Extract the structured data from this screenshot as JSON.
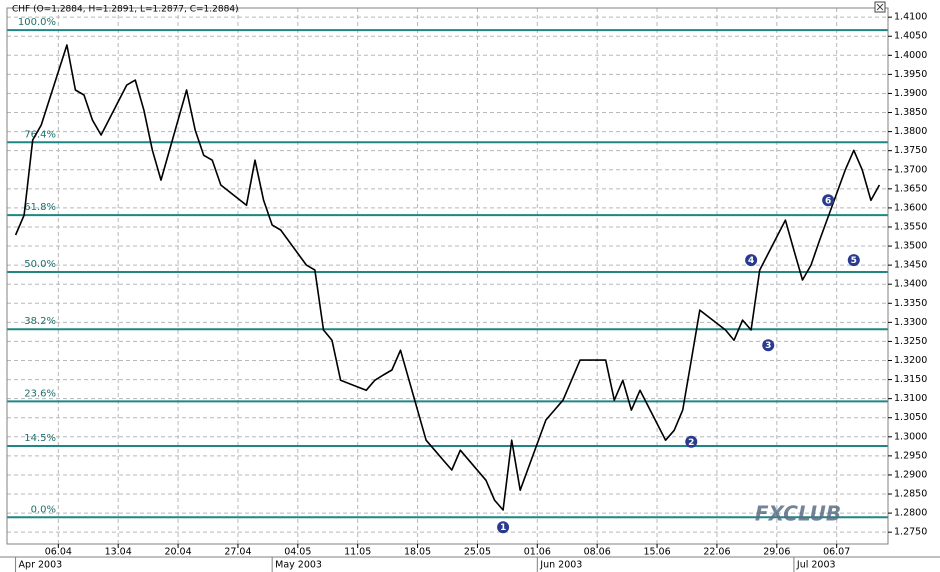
{
  "chart_data": {
    "type": "line",
    "title": "CHF (O=1.2884, H=1.2891, L=1.2877, C=1.2884)",
    "logo": "FXCLUB",
    "x": [
      "2003-04-01",
      "2003-04-02",
      "2003-04-03",
      "2003-04-04",
      "2003-04-07",
      "2003-04-08",
      "2003-04-09",
      "2003-04-10",
      "2003-04-11",
      "2003-04-14",
      "2003-04-15",
      "2003-04-16",
      "2003-04-17",
      "2003-04-18",
      "2003-04-21",
      "2003-04-22",
      "2003-04-23",
      "2003-04-24",
      "2003-04-25",
      "2003-04-28",
      "2003-04-29",
      "2003-04-30",
      "2003-05-01",
      "2003-05-02",
      "2003-05-05",
      "2003-05-06",
      "2003-05-07",
      "2003-05-08",
      "2003-05-09",
      "2003-05-12",
      "2003-05-13",
      "2003-05-14",
      "2003-05-15",
      "2003-05-16",
      "2003-05-19",
      "2003-05-20",
      "2003-05-21",
      "2003-05-22",
      "2003-05-23",
      "2003-05-26",
      "2003-05-27",
      "2003-05-28",
      "2003-05-29",
      "2003-05-30",
      "2003-06-02",
      "2003-06-03",
      "2003-06-04",
      "2003-06-05",
      "2003-06-06",
      "2003-06-09",
      "2003-06-10",
      "2003-06-11",
      "2003-06-12",
      "2003-06-13",
      "2003-06-16",
      "2003-06-17",
      "2003-06-18",
      "2003-06-19",
      "2003-06-20",
      "2003-06-23",
      "2003-06-24",
      "2003-06-25",
      "2003-06-26",
      "2003-06-27",
      "2003-06-30",
      "2003-07-01",
      "2003-07-02",
      "2003-07-03",
      "2003-07-04",
      "2003-07-07",
      "2003-07-08",
      "2003-07-09",
      "2003-07-10",
      "2003-07-11"
    ],
    "series": [
      {
        "name": "CHF",
        "color": "#000000",
        "values": [
          1.3529,
          1.3581,
          1.3778,
          1.3817,
          1.4027,
          1.3909,
          1.3896,
          1.383,
          1.3791,
          1.3922,
          1.3935,
          1.3856,
          1.3751,
          1.3673,
          1.3909,
          1.3804,
          1.3738,
          1.3725,
          1.366,
          1.3607,
          1.3725,
          1.362,
          1.3555,
          1.3542,
          1.345,
          1.3437,
          1.328,
          1.3253,
          1.3148,
          1.3122,
          1.3148,
          1.3162,
          1.3175,
          1.3227,
          1.2991,
          1.2965,
          1.2939,
          1.2913,
          1.2965,
          1.2886,
          1.2834,
          1.2808,
          1.2991,
          1.286,
          1.3044,
          1.307,
          1.3096,
          1.3148,
          1.3201,
          1.3201,
          1.3096,
          1.3148,
          1.307,
          1.3122,
          1.2991,
          1.3017,
          1.307,
          1.3201,
          1.3332,
          1.328,
          1.3253,
          1.3306,
          1.328,
          1.3437,
          1.3568,
          1.3489,
          1.3411,
          1.345,
          1.3515,
          1.3699,
          1.3751,
          1.3699,
          1.362,
          1.366
        ]
      }
    ],
    "xlim": [
      "2003-03-31",
      "2003-07-12"
    ],
    "xticks": [
      {
        "value": "2003-04-06",
        "label": "06.04"
      },
      {
        "value": "2003-04-13",
        "label": "13.04"
      },
      {
        "value": "2003-04-20",
        "label": "20.04"
      },
      {
        "value": "2003-04-27",
        "label": "27.04"
      },
      {
        "value": "2003-05-04",
        "label": "04.05"
      },
      {
        "value": "2003-05-11",
        "label": "11.05"
      },
      {
        "value": "2003-05-18",
        "label": "18.05"
      },
      {
        "value": "2003-05-25",
        "label": "25.05"
      },
      {
        "value": "2003-06-01",
        "label": "01.06"
      },
      {
        "value": "2003-06-08",
        "label": "08.06"
      },
      {
        "value": "2003-06-15",
        "label": "15.06"
      },
      {
        "value": "2003-06-22",
        "label": "22.06"
      },
      {
        "value": "2003-06-29",
        "label": "29.06"
      },
      {
        "value": "2003-07-06",
        "label": "06.07"
      }
    ],
    "month_ticks": [
      {
        "value": "2003-04-01",
        "label": "Apr 2003"
      },
      {
        "value": "2003-05-01",
        "label": "May 2003"
      },
      {
        "value": "2003-06-01",
        "label": "Jun 2003"
      },
      {
        "value": "2003-07-01",
        "label": "Jul 2003"
      }
    ],
    "ylim": [
      1.2719,
      1.4124
    ],
    "yticks": [
      {
        "value": 1.275,
        "label": "1.2750"
      },
      {
        "value": 1.28,
        "label": "1.2800"
      },
      {
        "value": 1.285,
        "label": "1.2850"
      },
      {
        "value": 1.29,
        "label": "1.2900"
      },
      {
        "value": 1.295,
        "label": "1.2950"
      },
      {
        "value": 1.3,
        "label": "1.3000"
      },
      {
        "value": 1.305,
        "label": "1.3050"
      },
      {
        "value": 1.31,
        "label": "1.3100"
      },
      {
        "value": 1.315,
        "label": "1.3150"
      },
      {
        "value": 1.32,
        "label": "1.3200"
      },
      {
        "value": 1.325,
        "label": "1.3250"
      },
      {
        "value": 1.33,
        "label": "1.3300"
      },
      {
        "value": 1.335,
        "label": "1.3350"
      },
      {
        "value": 1.34,
        "label": "1.3400"
      },
      {
        "value": 1.345,
        "label": "1.3450"
      },
      {
        "value": 1.35,
        "label": "1.3500"
      },
      {
        "value": 1.355,
        "label": "1.3550"
      },
      {
        "value": 1.36,
        "label": "1.3600"
      },
      {
        "value": 1.365,
        "label": "1.3650"
      },
      {
        "value": 1.37,
        "label": "1.3700"
      },
      {
        "value": 1.375,
        "label": "1.3750"
      },
      {
        "value": 1.38,
        "label": "1.3800"
      },
      {
        "value": 1.385,
        "label": "1.3850"
      },
      {
        "value": 1.39,
        "label": "1.3900"
      },
      {
        "value": 1.395,
        "label": "1.3950"
      },
      {
        "value": 1.4,
        "label": "1.4000"
      },
      {
        "value": 1.405,
        "label": "1.4050"
      },
      {
        "value": 1.41,
        "label": "1.4100"
      }
    ],
    "grid": true,
    "fib_color": "#1f8585",
    "fib_levels": [
      {
        "label": "100.0%",
        "price": 1.4066
      },
      {
        "label": "76.4%",
        "price": 1.3772
      },
      {
        "label": "61.8%",
        "price": 1.3581
      },
      {
        "label": "50.0%",
        "price": 1.3432
      },
      {
        "label": "38.2%",
        "price": 1.3282
      },
      {
        "label": "23.6%",
        "price": 1.3093
      },
      {
        "label": "14.5%",
        "price": 1.2976
      },
      {
        "label": "0.0%",
        "price": 1.2789
      }
    ],
    "wave_color": "#2a3a8f",
    "waves": [
      {
        "label": "1",
        "x": "2003-05-28",
        "price": 1.2763
      },
      {
        "label": "2",
        "x": "2003-06-19",
        "price": 1.2987
      },
      {
        "label": "3",
        "x": "2003-06-28",
        "price": 1.324
      },
      {
        "label": "4",
        "x": "2003-06-26",
        "price": 1.3463
      },
      {
        "label": "5",
        "x": "2003-07-08",
        "price": 1.3463
      },
      {
        "label": "6",
        "x": "2003-07-05",
        "price": 1.362
      }
    ]
  }
}
